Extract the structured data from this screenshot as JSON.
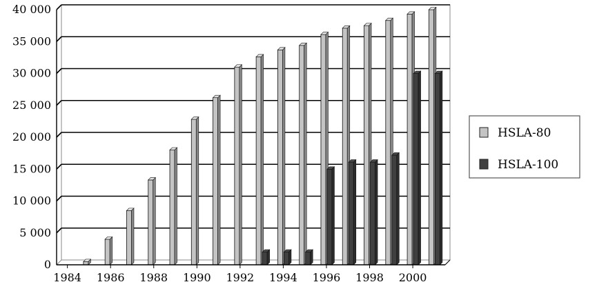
{
  "chart_data": {
    "type": "bar",
    "title": "",
    "xlabel": "",
    "ylabel": "",
    "x": [
      1984,
      1985,
      1986,
      1987,
      1988,
      1989,
      1990,
      1991,
      1992,
      1993,
      1994,
      1995,
      1996,
      1997,
      1998,
      1999,
      2000,
      2001
    ],
    "x_tick_labels": [
      "1984",
      "1986",
      "1988",
      "1990",
      "1992",
      "1994",
      "1996",
      "1998",
      "2000"
    ],
    "y_tick_labels": [
      "0",
      "5 000",
      "10 000",
      "15 000",
      "20 000",
      "25 000",
      "30 000",
      "35 000",
      "40 000"
    ],
    "y_ticks": [
      0,
      5000,
      10000,
      15000,
      20000,
      25000,
      30000,
      35000,
      40000
    ],
    "ylim": [
      0,
      40000
    ],
    "grid": "horizontal",
    "legend_position": "right",
    "series": [
      {
        "name": "HSLA-80",
        "color": "#c4c4c4",
        "values": [
          0,
          500,
          4000,
          8500,
          13300,
          18000,
          22800,
          26200,
          31000,
          32600,
          33700,
          34400,
          36100,
          37100,
          37500,
          38300,
          39300,
          40000
        ]
      },
      {
        "name": "HSLA-100",
        "color": "#404040",
        "values": [
          0,
          0,
          0,
          0,
          0,
          0,
          0,
          0,
          0,
          2000,
          2000,
          2000,
          15000,
          16100,
          16100,
          17200,
          30000,
          30000
        ]
      }
    ]
  }
}
